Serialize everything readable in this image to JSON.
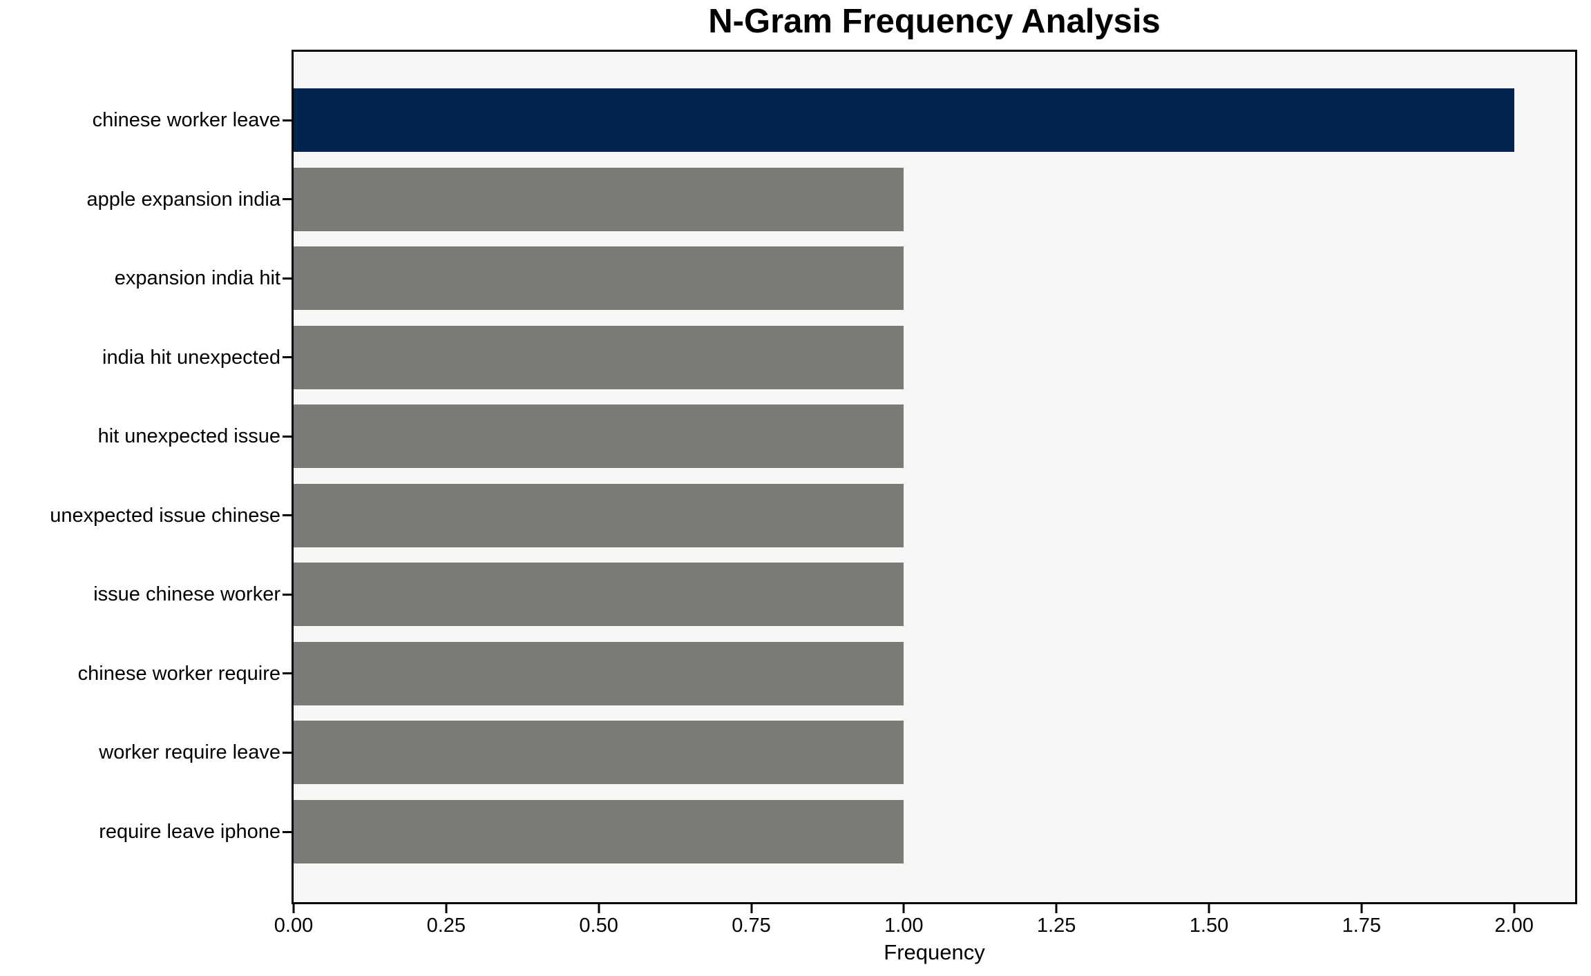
{
  "chart_data": {
    "type": "bar",
    "orientation": "horizontal",
    "title": "N-Gram Frequency Analysis",
    "xlabel": "Frequency",
    "ylabel": "",
    "categories": [
      "chinese worker leave",
      "apple expansion india",
      "expansion india hit",
      "india hit unexpected",
      "hit unexpected issue",
      "unexpected issue chinese",
      "issue chinese worker",
      "chinese worker require",
      "worker require leave",
      "require leave iphone"
    ],
    "values": [
      2,
      1,
      1,
      1,
      1,
      1,
      1,
      1,
      1,
      1
    ],
    "xlim": [
      0,
      2.1
    ],
    "xtick_values": [
      0,
      0.25,
      0.5,
      0.75,
      1.0,
      1.25,
      1.5,
      1.75,
      2.0
    ],
    "xtick_labels": [
      "0.00",
      "0.25",
      "0.50",
      "0.75",
      "1.00",
      "1.25",
      "1.50",
      "1.75",
      "2.00"
    ],
    "grid": false,
    "legend": null,
    "colors": {
      "bar_colors": [
        "#02244d",
        "#7b7a76",
        "#7b7a76",
        "#7b7a76",
        "#7b7a76",
        "#7b7a76",
        "#7b7a76",
        "#7b7a76",
        "#7b7a76",
        "#7b7a76"
      ],
      "highlight_bar": "#02244d",
      "default_bar": "#7b7a76",
      "plot_background": "#f7f7f5",
      "figure_background": "#ffffff",
      "spine": "#000000",
      "text": "#000000"
    }
  }
}
